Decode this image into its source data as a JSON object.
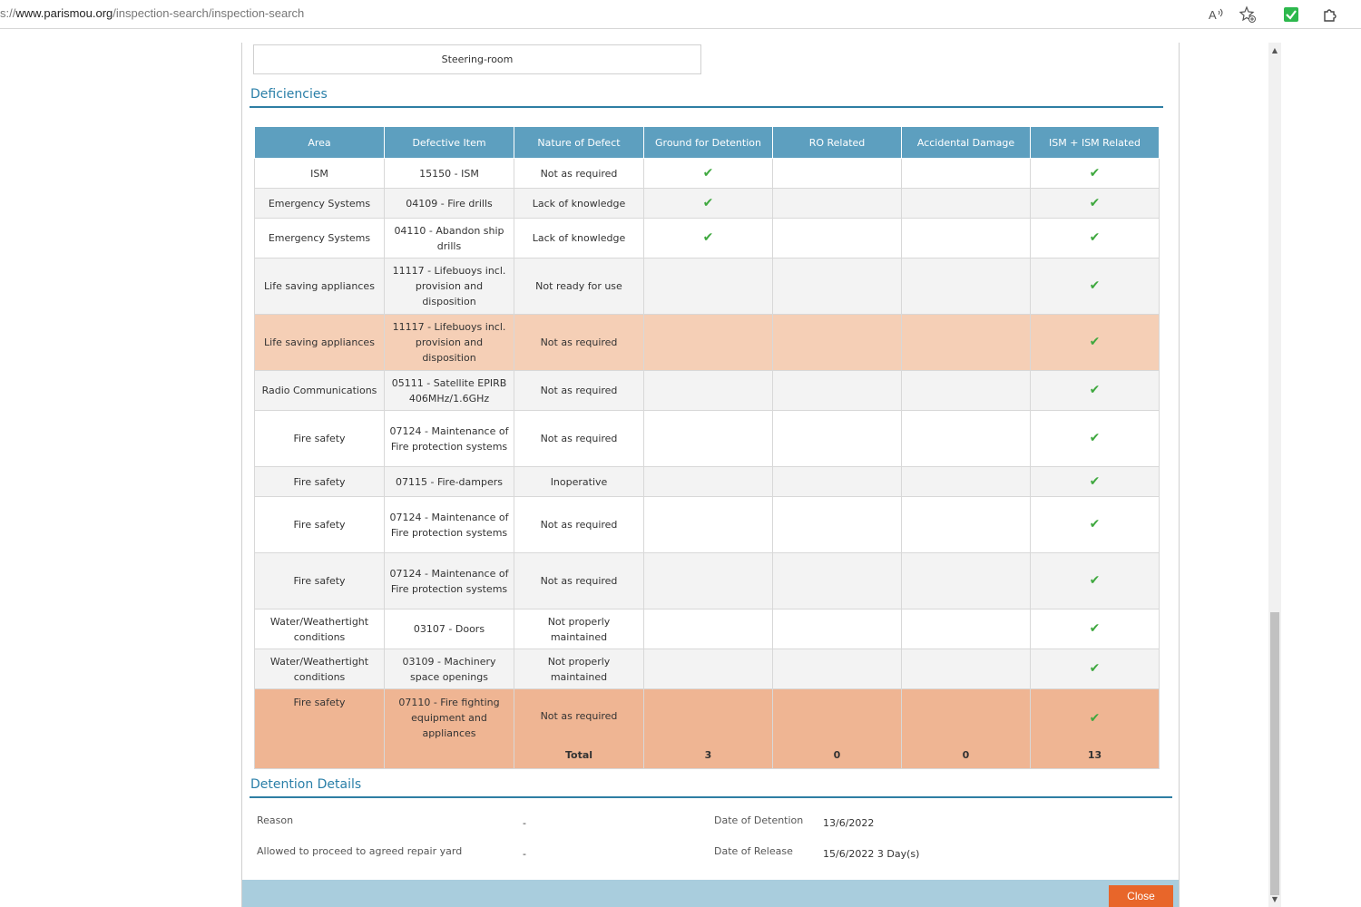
{
  "browser": {
    "url_prefix": "s://",
    "url_host": "www.parismou.org",
    "url_path": "/inspection-search/inspection-search",
    "icons": [
      "read-aloud-icon",
      "favorite-add-icon",
      "extension-check-icon",
      "extensions-icon"
    ]
  },
  "steering_label": "Steering-room",
  "deficiencies": {
    "title": "Deficiencies",
    "columns": [
      "Area",
      "Defective Item",
      "Nature of Defect",
      "Ground for Detention",
      "RO Related",
      "Accidental Damage",
      "ISM + ISM Related"
    ],
    "rows": [
      {
        "area": "ISM",
        "item": "15150 - ISM",
        "nature": "Not as required",
        "detention": true,
        "ro": false,
        "accidental": false,
        "ism": true,
        "style": "odd"
      },
      {
        "area": "Emergency Systems",
        "item": "04109 - Fire drills",
        "nature": "Lack of knowledge",
        "detention": true,
        "ro": false,
        "accidental": false,
        "ism": true,
        "style": "even"
      },
      {
        "area": "Emergency Systems",
        "item": "04110 - Abandon ship drills",
        "nature": "Lack of knowledge",
        "detention": true,
        "ro": false,
        "accidental": false,
        "ism": true,
        "style": "odd"
      },
      {
        "area": "Life saving appliances",
        "item": "11117 - Lifebuoys incl. provision and disposition",
        "nature": "Not ready for use",
        "detention": false,
        "ro": false,
        "accidental": false,
        "ism": true,
        "style": "even"
      },
      {
        "area": "Life saving appliances",
        "item": "11117 - Lifebuoys incl. provision and disposition",
        "nature": "Not as required",
        "detention": false,
        "ro": false,
        "accidental": false,
        "ism": true,
        "style": "hl1"
      },
      {
        "area": "Radio Communications",
        "item": "05111 - Satellite EPIRB 406MHz/1.6GHz",
        "nature": "Not as required",
        "detention": false,
        "ro": false,
        "accidental": false,
        "ism": true,
        "style": "even"
      },
      {
        "area": "Fire safety",
        "item": "07124 - Maintenance of Fire protection systems",
        "nature": "Not as required",
        "detention": false,
        "ro": false,
        "accidental": false,
        "ism": true,
        "style": "odd"
      },
      {
        "area": "Fire safety",
        "item": "07115 - Fire-dampers",
        "nature": "Inoperative",
        "detention": false,
        "ro": false,
        "accidental": false,
        "ism": true,
        "style": "even"
      },
      {
        "area": "Fire safety",
        "item": "07124 - Maintenance of Fire protection systems",
        "nature": "Not as required",
        "detention": false,
        "ro": false,
        "accidental": false,
        "ism": true,
        "style": "odd"
      },
      {
        "area": "Fire safety",
        "item": "07124 - Maintenance of Fire protection systems",
        "nature": "Not as required",
        "detention": false,
        "ro": false,
        "accidental": false,
        "ism": true,
        "style": "even"
      },
      {
        "area": "Water/Weathertight conditions",
        "item": "03107 - Doors",
        "nature": "Not properly maintained",
        "detention": false,
        "ro": false,
        "accidental": false,
        "ism": true,
        "style": "odd"
      },
      {
        "area": "Water/Weathertight conditions",
        "item": "03109 - Machinery space openings",
        "nature": "Not properly maintained",
        "detention": false,
        "ro": false,
        "accidental": false,
        "ism": true,
        "style": "even"
      },
      {
        "area": "Fire safety",
        "item": "07110 - Fire fighting equipment and appliances",
        "nature": "Not as required",
        "detention": false,
        "ro": false,
        "accidental": false,
        "ism": true,
        "style": "hl2"
      }
    ],
    "totals": {
      "label": "Total",
      "detention": "3",
      "ro": "0",
      "accidental": "0",
      "ism": "13"
    },
    "check_glyph": "✔"
  },
  "detention": {
    "title": "Detention Details",
    "reason_label": "Reason",
    "reason_value": "-",
    "repair_label": "Allowed to proceed to agreed repair yard",
    "repair_value": "-",
    "date_detention_label": "Date of Detention",
    "date_detention_value": "13/6/2022",
    "date_release_label": "Date of Release",
    "date_release_value": "15/6/2022 3 Day(s)"
  },
  "footer": {
    "close_label": "Close",
    "close_color": "#e8662a"
  }
}
